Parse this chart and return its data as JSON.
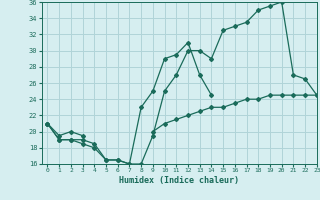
{
  "xlabel": "Humidex (Indice chaleur)",
  "bg_color": "#d6eef0",
  "grid_color": "#b0d4d8",
  "line_color": "#1a6b5a",
  "ylim": [
    16,
    36
  ],
  "xlim": [
    -0.5,
    23
  ],
  "yticks": [
    16,
    18,
    20,
    22,
    24,
    26,
    28,
    30,
    32,
    34,
    36
  ],
  "xticks": [
    0,
    1,
    2,
    3,
    4,
    5,
    6,
    7,
    8,
    9,
    10,
    11,
    12,
    13,
    14,
    15,
    16,
    17,
    18,
    19,
    20,
    21,
    22,
    23
  ],
  "line1_y": [
    21,
    19,
    19,
    19,
    18.5,
    16.5,
    16.5,
    16,
    16,
    19.5,
    25,
    27,
    30,
    30,
    29,
    32.5,
    33,
    33.5,
    35,
    35.5,
    36,
    27,
    26.5,
    24.5
  ],
  "line2_y": [
    21,
    19,
    19,
    18.5,
    18,
    16.5,
    16.5,
    16,
    23,
    25,
    29,
    29.5,
    31,
    27,
    24.5,
    null,
    null,
    null,
    null,
    null,
    null,
    null,
    null,
    null
  ],
  "line3_y": [
    21,
    19.5,
    20,
    19.5,
    null,
    null,
    null,
    null,
    null,
    20,
    21,
    21.5,
    22,
    22.5,
    23,
    23,
    23.5,
    24,
    24,
    24.5,
    24.5,
    24.5,
    24.5,
    24.5
  ]
}
